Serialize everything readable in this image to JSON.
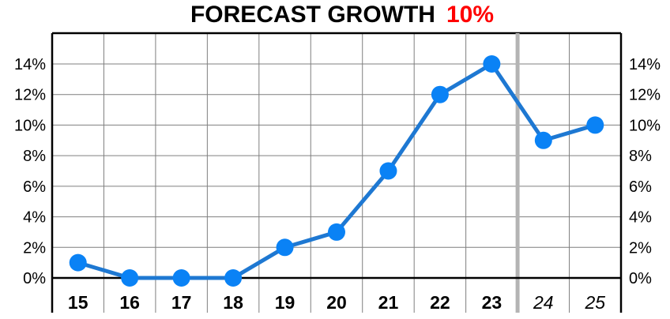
{
  "chart_data": {
    "type": "line",
    "title": "FORECAST GROWTH",
    "title_value": "10%",
    "title_value_color": "#ff0000",
    "xlabel": "",
    "ylabel": "",
    "categories": [
      "15",
      "16",
      "17",
      "18",
      "19",
      "20",
      "21",
      "22",
      "23",
      "24",
      "25"
    ],
    "forecast_categories": [
      "24",
      "25"
    ],
    "series": [
      {
        "values": [
          1,
          0,
          0,
          0,
          2,
          3,
          7,
          12,
          14,
          9,
          10
        ]
      }
    ],
    "y_tick_labels": [
      "0%",
      "2%",
      "4%",
      "6%",
      "8%",
      "10%",
      "12%",
      "14%"
    ],
    "ylim": [
      0,
      14
    ],
    "grid": true,
    "legend": "none",
    "line_color": "#1e78d2",
    "marker_color": "#0a82f5",
    "forecast_divider_color": "#b4b4b4"
  }
}
